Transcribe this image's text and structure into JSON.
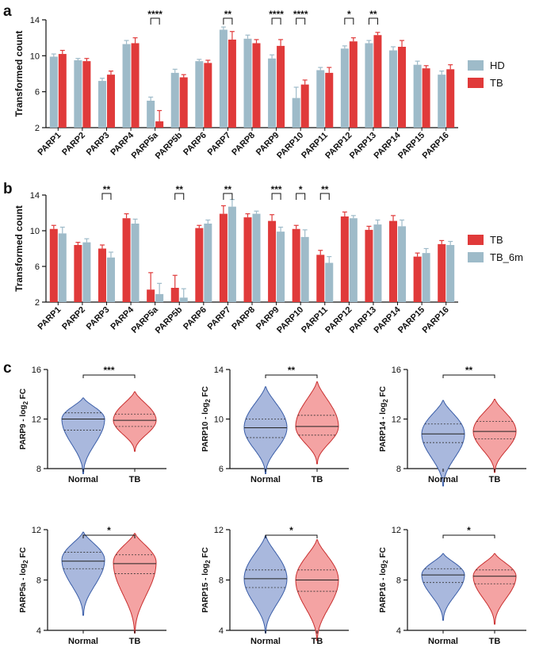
{
  "panels": {
    "a": "a",
    "b": "b",
    "c": "c"
  },
  "colors": {
    "hd": "#9ebbc9",
    "tb": "#e03a3a",
    "tb6m": "#9ebbc9",
    "normal_fill": "#a9b8dd",
    "normal_line": "#3b5ea8",
    "tb_fill": "#f4a3a3",
    "tb_line": "#c93030"
  },
  "chart_data": [
    {
      "id": "a",
      "type": "bar",
      "ylabel": "Transformed count",
      "ylim": [
        2,
        14
      ],
      "yticks": [
        "2",
        "6",
        "10",
        "14"
      ],
      "legend_position": "right",
      "categories": [
        "PARP1",
        "PARP2",
        "PARP3",
        "PARP4",
        "PARP5a",
        "PARP5b",
        "PARP6",
        "PARP7",
        "PARP8",
        "PARP9",
        "PARP10",
        "PARP11",
        "PARP12",
        "PARP13",
        "PARP14",
        "PARP15",
        "PARP16"
      ],
      "series": [
        {
          "name": "HD",
          "color": "#9ebbc9",
          "values": [
            9.9,
            9.5,
            7.2,
            11.3,
            5.0,
            8.1,
            9.4,
            12.9,
            11.9,
            9.7,
            5.3,
            8.4,
            10.8,
            11.4,
            10.6,
            9.0,
            7.9
          ],
          "errors": [
            0.3,
            0.2,
            0.3,
            0.4,
            0.4,
            0.4,
            0.2,
            0.3,
            0.4,
            0.4,
            1.2,
            0.3,
            0.3,
            0.3,
            0.4,
            0.4,
            0.4
          ]
        },
        {
          "name": "TB",
          "color": "#e03a3a",
          "values": [
            10.2,
            9.4,
            7.9,
            11.4,
            2.7,
            7.6,
            9.2,
            11.8,
            11.4,
            11.1,
            6.8,
            8.1,
            11.6,
            12.3,
            11.0,
            8.6,
            8.5
          ],
          "errors": [
            0.4,
            0.3,
            0.4,
            0.6,
            1.2,
            0.3,
            0.3,
            0.9,
            0.4,
            0.7,
            0.5,
            0.6,
            0.4,
            0.3,
            0.7,
            0.3,
            0.5
          ]
        }
      ],
      "significance": [
        {
          "category": "PARP5a",
          "label": "****"
        },
        {
          "category": "PARP7",
          "label": "**"
        },
        {
          "category": "PARP9",
          "label": "****"
        },
        {
          "category": "PARP10",
          "label": "****"
        },
        {
          "category": "PARP12",
          "label": "*"
        },
        {
          "category": "PARP13",
          "label": "**"
        }
      ]
    },
    {
      "id": "b",
      "type": "bar",
      "ylabel": "Transformed count",
      "ylim": [
        2,
        14
      ],
      "yticks": [
        "2",
        "6",
        "10",
        "14"
      ],
      "legend_position": "right",
      "categories": [
        "PARP1",
        "PARP2",
        "PARP3",
        "PARP4",
        "PARP5a",
        "PARP5b",
        "PARP6",
        "PARP7",
        "PARP8",
        "PARP9",
        "PARP10",
        "PARP11",
        "PARP12",
        "PARP13",
        "PARP14",
        "PARP15",
        "PARP16"
      ],
      "series": [
        {
          "name": "TB",
          "color": "#e03a3a",
          "values": [
            10.2,
            8.4,
            8.0,
            11.4,
            3.4,
            3.6,
            10.3,
            11.9,
            11.5,
            11.1,
            10.2,
            7.3,
            11.6,
            10.1,
            11.1,
            7.1,
            8.5
          ],
          "errors": [
            0.4,
            0.3,
            0.4,
            0.5,
            1.9,
            1.4,
            0.3,
            0.9,
            0.4,
            0.7,
            0.4,
            0.5,
            0.5,
            0.4,
            0.6,
            0.4,
            0.4
          ]
        },
        {
          "name": "TB_6m",
          "color": "#9ebbc9",
          "values": [
            9.7,
            8.7,
            7.0,
            10.8,
            2.9,
            2.5,
            10.8,
            12.7,
            11.9,
            9.9,
            9.3,
            6.4,
            11.4,
            10.7,
            10.5,
            7.5,
            8.4
          ],
          "errors": [
            0.7,
            0.4,
            0.6,
            0.5,
            1.2,
            1.0,
            0.4,
            0.8,
            0.3,
            0.5,
            0.8,
            0.7,
            0.3,
            0.5,
            0.7,
            0.5,
            0.4
          ]
        }
      ],
      "significance": [
        {
          "category": "PARP3",
          "label": "**"
        },
        {
          "category": "PARP5b",
          "label": "**"
        },
        {
          "category": "PARP7",
          "label": "**"
        },
        {
          "category": "PARP9",
          "label": "***"
        },
        {
          "category": "PARP10",
          "label": "*"
        },
        {
          "category": "PARP11",
          "label": "**"
        }
      ]
    },
    {
      "id": "c",
      "type": "violin",
      "groups": [
        "Normal",
        "TB"
      ],
      "plots": [
        {
          "ylabel_main": "PARP9 - log",
          "ylabel_sub": "2",
          "ylabel_tail": " FC",
          "ylim": [
            8,
            16
          ],
          "yticks": [
            "8",
            "12",
            "16"
          ],
          "significance": "***",
          "normal": {
            "min": 7.6,
            "max": 13.7,
            "mode": 12.0,
            "median": 12.0,
            "q1": 11.1,
            "q3": 12.5
          },
          "tb": {
            "min": 9.4,
            "max": 14.2,
            "mode": 11.9,
            "median": 11.9,
            "q1": 11.4,
            "q3": 12.4
          }
        },
        {
          "ylabel_main": "PARP10 - log",
          "ylabel_sub": "2",
          "ylabel_tail": " FC",
          "ylim": [
            6,
            14
          ],
          "yticks": [
            "6",
            "10",
            "14"
          ],
          "significance": "**",
          "normal": {
            "min": 5.6,
            "max": 12.6,
            "mode": 9.3,
            "median": 9.3,
            "q1": 8.5,
            "q3": 10.0
          },
          "tb": {
            "min": 6.4,
            "max": 13.0,
            "mode": 9.4,
            "median": 9.4,
            "q1": 8.7,
            "q3": 10.3
          }
        },
        {
          "ylabel_main": "PARP14 - log",
          "ylabel_sub": "2",
          "ylabel_tail": " FC",
          "ylim": [
            8,
            16
          ],
          "yticks": [
            "8",
            "12",
            "16"
          ],
          "significance": "**",
          "normal": {
            "min": 6.6,
            "max": 13.5,
            "mode": 10.8,
            "median": 10.8,
            "q1": 10.1,
            "q3": 11.6
          },
          "tb": {
            "min": 7.7,
            "max": 13.6,
            "mode": 11.0,
            "median": 11.0,
            "q1": 10.4,
            "q3": 11.8
          }
        },
        {
          "ylabel_main": "PARP5a - log",
          "ylabel_sub": "2",
          "ylabel_tail": " FC",
          "ylim": [
            4,
            12
          ],
          "yticks": [
            "4",
            "8",
            "12"
          ],
          "significance": "*",
          "normal": {
            "min": 5.2,
            "max": 11.8,
            "mode": 9.6,
            "median": 9.5,
            "q1": 8.9,
            "q3": 10.2
          },
          "tb": {
            "min": 3.8,
            "max": 11.7,
            "mode": 9.4,
            "median": 9.3,
            "q1": 8.5,
            "q3": 10.0
          }
        },
        {
          "ylabel_main": "PARP15 - log",
          "ylabel_sub": "2",
          "ylabel_tail": " FC",
          "ylim": [
            4,
            12
          ],
          "yticks": [
            "4",
            "8",
            "12"
          ],
          "significance": "*",
          "normal": {
            "min": 3.8,
            "max": 11.5,
            "mode": 8.1,
            "median": 8.1,
            "q1": 7.4,
            "q3": 8.8
          },
          "tb": {
            "min": 3.2,
            "max": 11.2,
            "mode": 8.0,
            "median": 8.0,
            "q1": 7.1,
            "q3": 8.8
          }
        },
        {
          "ylabel_main": "PARP16 - log",
          "ylabel_sub": "2",
          "ylabel_tail": " FC",
          "ylim": [
            4,
            12
          ],
          "yticks": [
            "4",
            "8",
            "12"
          ],
          "significance": "*",
          "normal": {
            "min": 4.8,
            "max": 10.1,
            "mode": 8.4,
            "median": 8.4,
            "q1": 7.8,
            "q3": 8.9
          },
          "tb": {
            "min": 4.5,
            "max": 10.1,
            "mode": 8.3,
            "median": 8.3,
            "q1": 7.7,
            "q3": 8.8
          }
        }
      ]
    }
  ]
}
